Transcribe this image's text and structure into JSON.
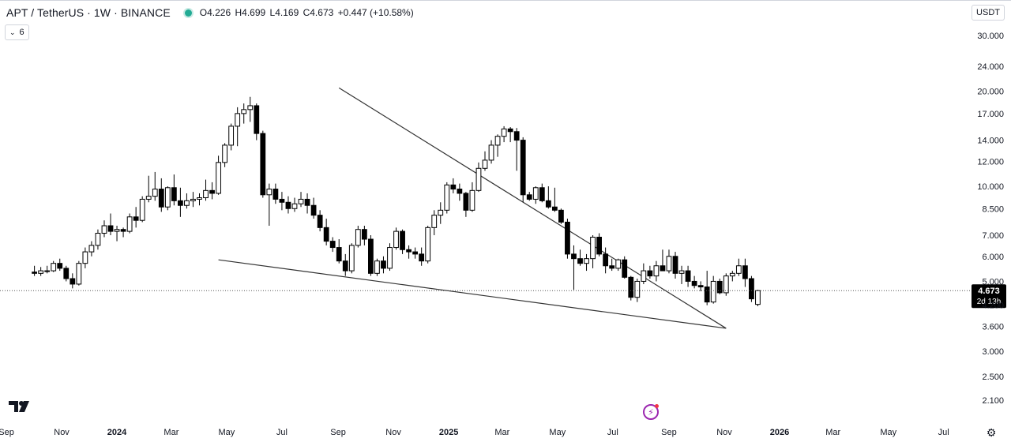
{
  "header": {
    "title": "APT / TetherUS · 1W · BINANCE",
    "open": "O4.226",
    "high": "H4.699",
    "low": "L4.169",
    "close": "C4.673",
    "change": "+0.447 (+10.58%)",
    "status_color": "#22ab94"
  },
  "toolbar": {
    "indicators_count": "6",
    "currency": "USDT"
  },
  "chart_data": {
    "type": "candlestick",
    "symbol": "APT / TetherUS",
    "interval": "1W",
    "exchange": "BINANCE",
    "y_scale": "log",
    "ylim": [
      1.95,
      32.0
    ],
    "y_ticks": [
      {
        "v": 30.0,
        "label": "30.000"
      },
      {
        "v": 24.0,
        "label": "24.000"
      },
      {
        "v": 20.0,
        "label": "20.000"
      },
      {
        "v": 17.0,
        "label": "17.000"
      },
      {
        "v": 14.0,
        "label": "14.000"
      },
      {
        "v": 12.0,
        "label": "12.000"
      },
      {
        "v": 10.0,
        "label": "10.000"
      },
      {
        "v": 8.5,
        "label": "8.500"
      },
      {
        "v": 7.0,
        "label": "7.000"
      },
      {
        "v": 6.0,
        "label": "6.000"
      },
      {
        "v": 5.0,
        "label": "5.000"
      },
      {
        "v": 4.2,
        "label": "4.200"
      },
      {
        "v": 3.6,
        "label": "3.600"
      },
      {
        "v": 3.0,
        "label": "3.000"
      },
      {
        "v": 2.5,
        "label": "2.500"
      },
      {
        "v": 2.1,
        "label": "2.100"
      }
    ],
    "x_ticks": [
      {
        "date": "2023-09-01",
        "label": "Sep",
        "bold": false
      },
      {
        "date": "2023-11-01",
        "label": "Nov",
        "bold": false
      },
      {
        "date": "2024-01-01",
        "label": "2024",
        "bold": true
      },
      {
        "date": "2024-03-01",
        "label": "Mar",
        "bold": false
      },
      {
        "date": "2024-05-01",
        "label": "May",
        "bold": false
      },
      {
        "date": "2024-07-01",
        "label": "Jul",
        "bold": false
      },
      {
        "date": "2024-09-01",
        "label": "Sep",
        "bold": false
      },
      {
        "date": "2024-11-01",
        "label": "Nov",
        "bold": false
      },
      {
        "date": "2025-01-01",
        "label": "2025",
        "bold": true
      },
      {
        "date": "2025-03-01",
        "label": "Mar",
        "bold": false
      },
      {
        "date": "2025-05-01",
        "label": "May",
        "bold": false
      },
      {
        "date": "2025-07-01",
        "label": "Jul",
        "bold": false
      },
      {
        "date": "2025-09-01",
        "label": "Sep",
        "bold": false
      },
      {
        "date": "2025-11-01",
        "label": "Nov",
        "bold": false
      },
      {
        "date": "2026-01-01",
        "label": "2026",
        "bold": true
      },
      {
        "date": "2026-03-01",
        "label": "Mar",
        "bold": false
      },
      {
        "date": "2026-05-01",
        "label": "May",
        "bold": false
      },
      {
        "date": "2026-07-01",
        "label": "Jul",
        "bold": false
      }
    ],
    "x_range": [
      "2023-08-25",
      "2026-07-30"
    ],
    "first_candle": "2023-10-02",
    "candles": [
      [
        5.35,
        5.6,
        5.2,
        5.3
      ],
      [
        5.3,
        5.55,
        5.2,
        5.4
      ],
      [
        5.4,
        5.6,
        5.3,
        5.4
      ],
      [
        5.4,
        5.8,
        5.35,
        5.7
      ],
      [
        5.7,
        5.9,
        5.4,
        5.5
      ],
      [
        5.5,
        5.6,
        5.0,
        5.1
      ],
      [
        5.1,
        5.3,
        4.75,
        4.9
      ],
      [
        4.9,
        5.8,
        4.85,
        5.7
      ],
      [
        5.7,
        6.4,
        5.5,
        6.2
      ],
      [
        6.2,
        6.7,
        6.0,
        6.5
      ],
      [
        6.5,
        7.3,
        6.3,
        7.1
      ],
      [
        7.1,
        7.8,
        6.9,
        7.5
      ],
      [
        7.5,
        8.2,
        7.0,
        7.2
      ],
      [
        7.2,
        7.5,
        6.7,
        7.3
      ],
      [
        7.3,
        7.4,
        6.9,
        7.2
      ],
      [
        7.2,
        8.2,
        7.1,
        8.0
      ],
      [
        8.0,
        8.6,
        7.4,
        7.8
      ],
      [
        7.8,
        9.3,
        7.7,
        9.1
      ],
      [
        9.1,
        10.8,
        8.9,
        9.3
      ],
      [
        9.3,
        11.1,
        9.0,
        9.8
      ],
      [
        9.8,
        10.6,
        8.3,
        8.6
      ],
      [
        8.6,
        10.0,
        8.4,
        9.9
      ],
      [
        9.9,
        10.9,
        8.7,
        9.0
      ],
      [
        9.0,
        9.9,
        8.0,
        8.7
      ],
      [
        8.7,
        9.5,
        8.5,
        9.0
      ],
      [
        9.0,
        9.6,
        8.6,
        9.1
      ],
      [
        9.1,
        9.5,
        8.7,
        9.2
      ],
      [
        9.2,
        10.5,
        9.0,
        9.7
      ],
      [
        9.7,
        10.3,
        9.1,
        9.5
      ],
      [
        9.5,
        12.5,
        9.4,
        11.9
      ],
      [
        11.9,
        13.7,
        11.5,
        13.5
      ],
      [
        13.5,
        15.8,
        13.0,
        15.5
      ],
      [
        15.5,
        17.8,
        13.4,
        17.0
      ],
      [
        17.0,
        18.3,
        15.8,
        17.5
      ],
      [
        17.5,
        19.2,
        16.0,
        18.0
      ],
      [
        18.0,
        18.3,
        14.0,
        14.7
      ],
      [
        14.7,
        15.0,
        9.2,
        9.4
      ],
      [
        9.4,
        10.2,
        7.5,
        9.8
      ],
      [
        9.8,
        10.2,
        8.8,
        9.1
      ],
      [
        9.1,
        9.6,
        8.4,
        8.9
      ],
      [
        8.9,
        9.3,
        8.2,
        8.5
      ],
      [
        8.5,
        9.2,
        8.3,
        8.8
      ],
      [
        8.8,
        9.6,
        8.6,
        9.1
      ],
      [
        9.1,
        9.5,
        8.2,
        8.7
      ],
      [
        8.7,
        9.2,
        7.9,
        8.1
      ],
      [
        8.1,
        8.4,
        7.2,
        7.4
      ],
      [
        7.4,
        7.9,
        6.5,
        6.7
      ],
      [
        6.7,
        6.9,
        6.2,
        6.4
      ],
      [
        6.4,
        6.8,
        5.7,
        5.8
      ],
      [
        5.8,
        6.1,
        5.2,
        5.4
      ],
      [
        5.4,
        6.6,
        5.3,
        6.5
      ],
      [
        6.5,
        7.5,
        6.4,
        7.3
      ],
      [
        7.3,
        7.5,
        6.5,
        6.8
      ],
      [
        6.8,
        7.0,
        5.2,
        5.3
      ],
      [
        5.3,
        5.9,
        5.2,
        5.8
      ],
      [
        5.8,
        6.0,
        5.3,
        5.5
      ],
      [
        5.5,
        6.6,
        5.4,
        6.4
      ],
      [
        6.4,
        7.4,
        6.3,
        7.2
      ],
      [
        7.2,
        7.3,
        6.1,
        6.3
      ],
      [
        6.3,
        6.5,
        5.9,
        6.2
      ],
      [
        6.2,
        6.4,
        5.9,
        6.1
      ],
      [
        6.1,
        6.4,
        5.6,
        5.8
      ],
      [
        5.8,
        7.5,
        5.7,
        7.4
      ],
      [
        7.4,
        8.4,
        7.0,
        8.1
      ],
      [
        8.1,
        8.9,
        7.6,
        8.4
      ],
      [
        8.4,
        10.3,
        8.2,
        10.1
      ],
      [
        10.1,
        10.6,
        9.5,
        9.8
      ],
      [
        9.8,
        10.2,
        9.0,
        9.5
      ],
      [
        9.5,
        9.6,
        8.0,
        8.4
      ],
      [
        8.4,
        10.3,
        8.3,
        9.7
      ],
      [
        9.7,
        11.9,
        9.6,
        11.4
      ],
      [
        11.4,
        12.9,
        11.2,
        12.1
      ],
      [
        12.1,
        14.0,
        11.8,
        13.5
      ],
      [
        13.5,
        14.6,
        12.4,
        14.4
      ],
      [
        14.4,
        15.5,
        13.8,
        15.2
      ],
      [
        15.2,
        15.4,
        13.8,
        14.9
      ],
      [
        14.9,
        15.3,
        11.2,
        14.0
      ],
      [
        14.0,
        14.3,
        8.9,
        9.4
      ],
      [
        9.4,
        9.6,
        9.0,
        9.1
      ],
      [
        9.1,
        10.0,
        8.8,
        9.9
      ],
      [
        9.9,
        10.2,
        8.9,
        9.0
      ],
      [
        9.0,
        10.0,
        8.5,
        8.6
      ],
      [
        8.6,
        9.9,
        8.3,
        8.4
      ],
      [
        8.4,
        8.5,
        7.6,
        7.7
      ],
      [
        7.7,
        7.9,
        5.9,
        6.1
      ],
      [
        6.1,
        6.5,
        4.7,
        5.9
      ],
      [
        5.9,
        6.3,
        5.6,
        5.7
      ],
      [
        5.7,
        6.1,
        5.4,
        5.9
      ],
      [
        5.9,
        7.0,
        5.5,
        6.9
      ],
      [
        6.9,
        7.1,
        6.0,
        6.1
      ],
      [
        6.1,
        6.4,
        5.3,
        5.6
      ],
      [
        5.6,
        5.9,
        5.4,
        5.5
      ],
      [
        5.5,
        5.9,
        5.4,
        5.85
      ],
      [
        5.85,
        6.0,
        5.1,
        5.15
      ],
      [
        5.15,
        5.2,
        4.35,
        4.45
      ],
      [
        4.45,
        5.1,
        4.3,
        5.0
      ],
      [
        5.0,
        5.7,
        4.9,
        5.4
      ],
      [
        5.4,
        5.6,
        5.1,
        5.2
      ],
      [
        5.2,
        5.8,
        5.0,
        5.6
      ],
      [
        5.6,
        6.3,
        5.4,
        5.4
      ],
      [
        5.4,
        6.3,
        5.3,
        6.0
      ],
      [
        6.0,
        6.2,
        5.1,
        5.3
      ],
      [
        5.3,
        5.6,
        4.9,
        5.4
      ],
      [
        5.4,
        5.6,
        4.8,
        5.0
      ],
      [
        5.0,
        5.2,
        4.75,
        4.85
      ],
      [
        4.85,
        5.0,
        4.65,
        4.8
      ],
      [
        4.8,
        5.4,
        4.2,
        4.3
      ],
      [
        4.3,
        5.2,
        4.25,
        5.0
      ],
      [
        5.0,
        5.1,
        4.55,
        4.6
      ],
      [
        4.6,
        5.3,
        4.5,
        5.2
      ],
      [
        5.2,
        5.4,
        5.0,
        5.3
      ],
      [
        5.3,
        5.9,
        5.2,
        5.6
      ],
      [
        5.6,
        5.9,
        4.8,
        5.1
      ],
      [
        5.1,
        5.2,
        4.3,
        4.4
      ],
      [
        4.226,
        4.699,
        4.169,
        4.673
      ]
    ],
    "current_price": {
      "value": 4.673,
      "label": "4.673",
      "countdown": "2d 13h"
    },
    "trendlines": [
      {
        "name": "upper-resistance",
        "from": {
          "date": "2024-09-02",
          "price": 20.5
        },
        "to": {
          "date": "2025-11-03",
          "price": 3.55
        }
      },
      {
        "name": "lower-support",
        "from": {
          "date": "2024-04-22",
          "price": 5.85
        },
        "to": {
          "date": "2025-11-03",
          "price": 3.55
        }
      }
    ],
    "colors": {
      "bull_fill": "#ffffff",
      "bear_fill": "#000000",
      "outline": "#000000",
      "trendline": "#333333",
      "grid": "#ffffff"
    }
  }
}
